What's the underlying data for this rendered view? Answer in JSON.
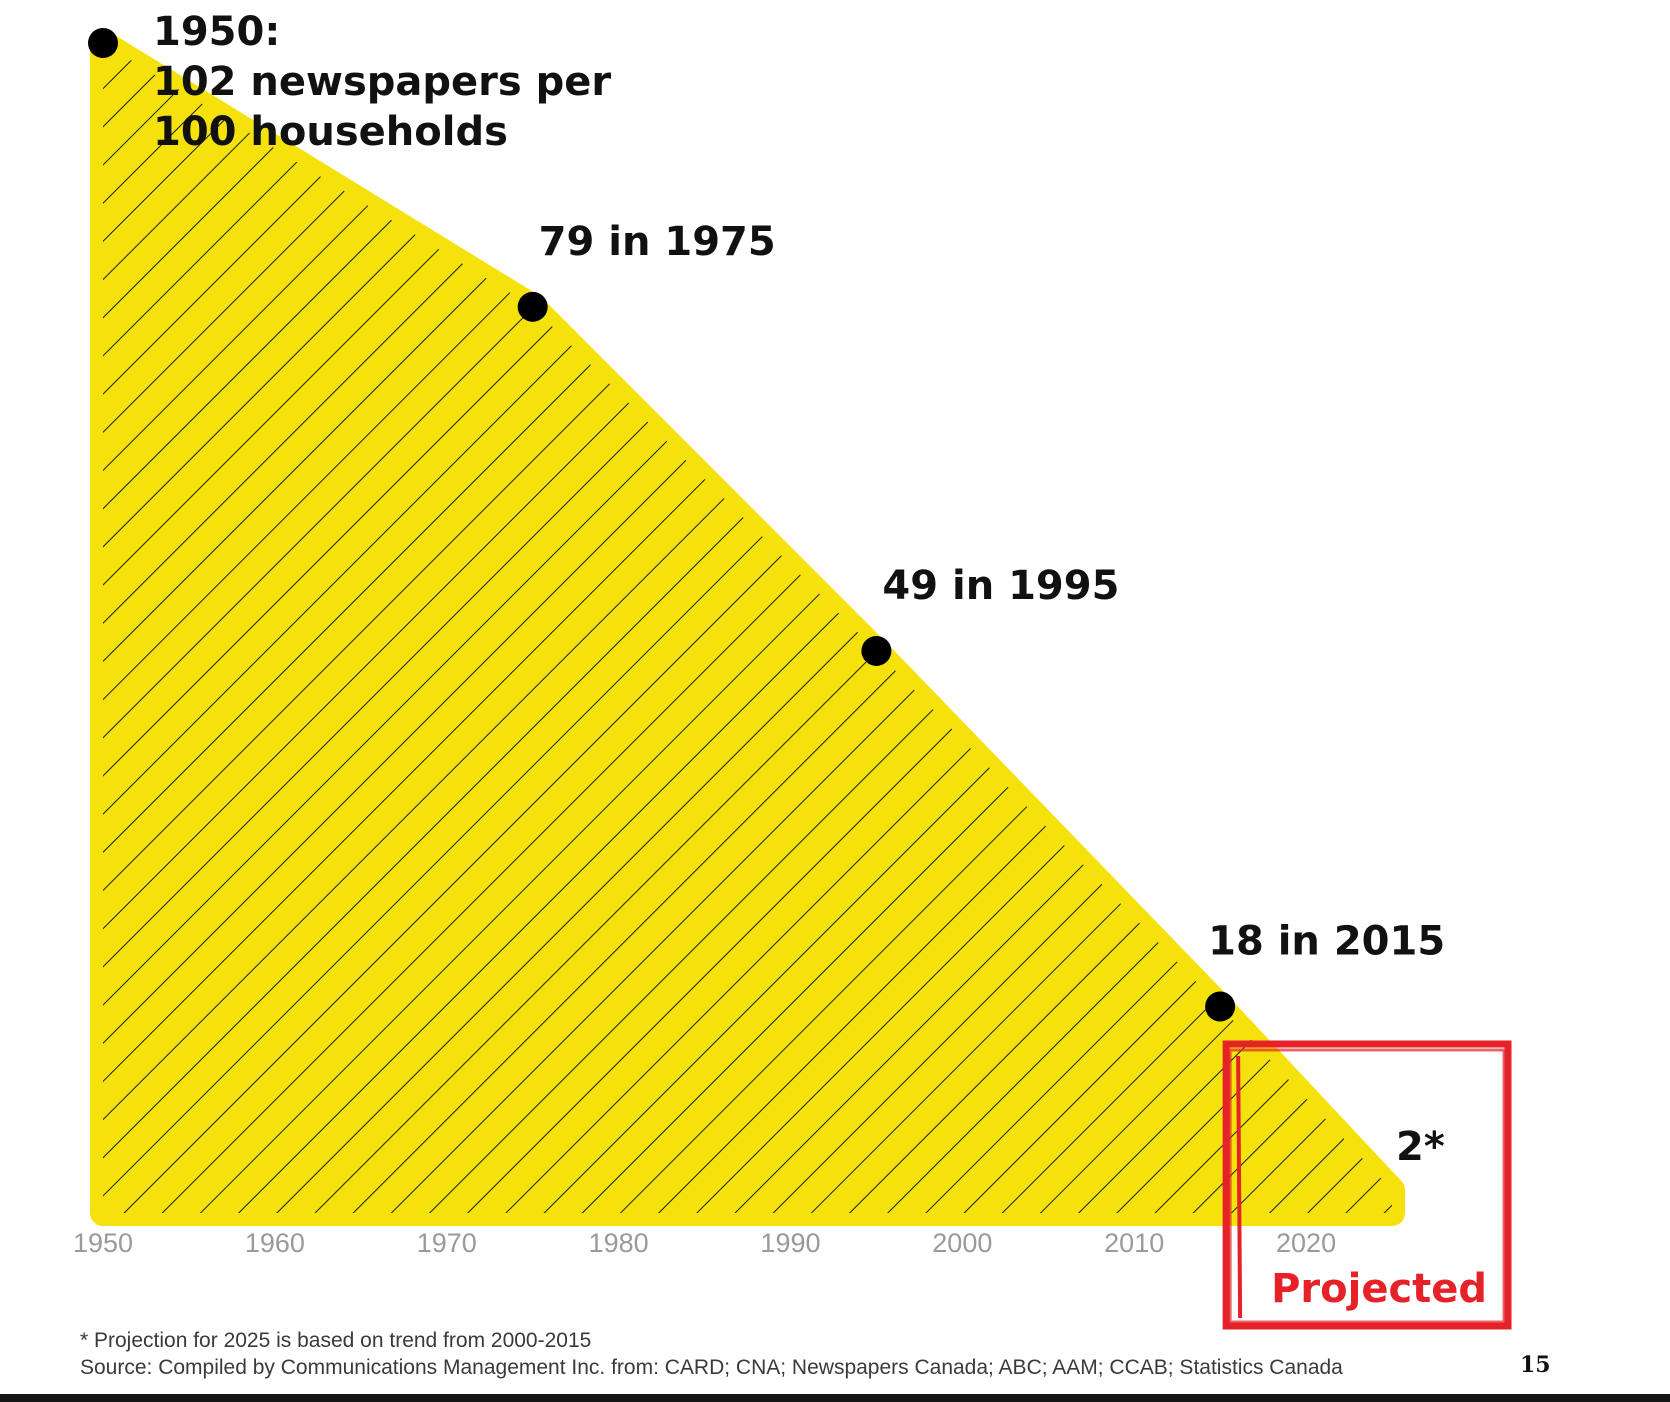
{
  "colors": {
    "fill": "#f5e20c",
    "hatch": "#1a1a1a",
    "marker": "#000000",
    "projection_box": "#e42228",
    "axis_tick_text": "#9a9a9a"
  },
  "chart_data": {
    "type": "area",
    "title": "",
    "xlabel": "",
    "ylabel": "",
    "x_unit": "year",
    "y_unit": "newspapers per 100 households",
    "xlim": [
      1950,
      2025
    ],
    "ylim": [
      0,
      102
    ],
    "x_ticks": [
      "1950",
      "1960",
      "1970",
      "1980",
      "1990",
      "2000",
      "2010",
      "2020"
    ],
    "grid": false,
    "fill_pattern": "diagonal-hatch",
    "series": [
      {
        "name": "",
        "x": [
          1950,
          1975,
          1995,
          2015,
          2025
        ],
        "y": [
          102,
          79,
          49,
          18,
          2
        ]
      }
    ],
    "projected_from": 2015,
    "projected_region_label": "Projected",
    "annotations": [
      {
        "x": 1950,
        "y": 102,
        "lines": [
          "1950:",
          "102 newspapers per",
          "100 households"
        ]
      },
      {
        "x": 1975,
        "y": 79,
        "lines": [
          "79 in 1975"
        ]
      },
      {
        "x": 1995,
        "y": 49,
        "lines": [
          "49 in 1995"
        ]
      },
      {
        "x": 2015,
        "y": 18,
        "lines": [
          "18 in 2015"
        ]
      },
      {
        "x": 2025,
        "y": 2,
        "lines": [
          "2*"
        ]
      }
    ]
  },
  "footnotes": {
    "projection_note": "* Projection for 2025 is based on trend from 2000-2015",
    "source": "Source: Compiled by Communications Management Inc. from: CARD; CNA; Newspapers Canada; ABC; AAM; CCAB; Statistics Canada"
  },
  "page_number": "15"
}
